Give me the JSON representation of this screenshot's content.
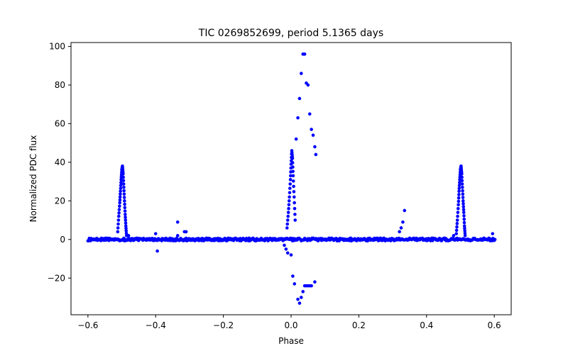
{
  "chart_data": {
    "type": "scatter",
    "title": "TIC 0269852699, period 5.1365 days",
    "xlabel": "Phase",
    "ylabel": "Normalized PDC flux",
    "xlim": [
      -0.65,
      0.65
    ],
    "ylim": [
      -39,
      102
    ],
    "xticks": [
      -0.6,
      -0.4,
      -0.2,
      0.0,
      0.2,
      0.4,
      0.6
    ],
    "xtick_labels": [
      "−0.6",
      "−0.4",
      "−0.2",
      "0.0",
      "0.2",
      "0.4",
      "0.6"
    ],
    "yticks": [
      -20,
      0,
      20,
      40,
      60,
      80,
      100
    ],
    "ytick_labels": [
      "−20",
      "0",
      "20",
      "40",
      "60",
      "80",
      "100"
    ],
    "grid": false,
    "marker_color": "#0000ff",
    "baseline": {
      "x_range": [
        -0.6,
        0.6
      ],
      "y_center": 0.0,
      "y_scatter": 0.7,
      "step": 0.004
    },
    "peaks": [
      {
        "name": "flare-left",
        "x": [
          -0.512,
          -0.509,
          -0.506,
          -0.504,
          -0.502,
          -0.5,
          -0.498,
          -0.496,
          -0.494,
          -0.492,
          -0.49,
          -0.488,
          -0.486
        ],
        "y": [
          4,
          12,
          19,
          25,
          31,
          36,
          38,
          34,
          27,
          20,
          13,
          7,
          2
        ]
      },
      {
        "name": "flare-right",
        "x": [
          0.488,
          0.491,
          0.494,
          0.496,
          0.498,
          0.5,
          0.502,
          0.504,
          0.506,
          0.508,
          0.51,
          0.512,
          0.514
        ],
        "y": [
          3,
          10,
          18,
          25,
          31,
          36,
          38,
          34,
          27,
          20,
          14,
          7,
          2
        ]
      },
      {
        "name": "flare-center",
        "x": [
          -0.012,
          -0.008,
          -0.005,
          -0.002,
          0.0,
          0.002,
          0.004,
          0.006,
          0.009,
          0.012
        ],
        "y": [
          6,
          14,
          22,
          31,
          39,
          46,
          42,
          33,
          22,
          10
        ]
      }
    ],
    "points": [
      {
        "x": 0.015,
        "y": 52
      },
      {
        "x": 0.02,
        "y": 63
      },
      {
        "x": 0.025,
        "y": 73
      },
      {
        "x": 0.03,
        "y": 86
      },
      {
        "x": 0.035,
        "y": 96
      },
      {
        "x": 0.04,
        "y": 96
      },
      {
        "x": 0.045,
        "y": 81
      },
      {
        "x": 0.05,
        "y": 80
      },
      {
        "x": 0.055,
        "y": 65
      },
      {
        "x": 0.06,
        "y": 57
      },
      {
        "x": 0.065,
        "y": 54
      },
      {
        "x": 0.07,
        "y": 48
      },
      {
        "x": 0.073,
        "y": 44
      },
      {
        "x": 0.0,
        "y": -8
      },
      {
        "x": 0.005,
        "y": -19
      },
      {
        "x": 0.01,
        "y": -23
      },
      {
        "x": 0.02,
        "y": -31
      },
      {
        "x": 0.025,
        "y": -33
      },
      {
        "x": 0.03,
        "y": -30
      },
      {
        "x": 0.035,
        "y": -27
      },
      {
        "x": 0.04,
        "y": -24
      },
      {
        "x": 0.045,
        "y": -24
      },
      {
        "x": 0.05,
        "y": -24
      },
      {
        "x": 0.055,
        "y": -24
      },
      {
        "x": 0.06,
        "y": -24
      },
      {
        "x": 0.07,
        "y": -22
      },
      {
        "x": -0.02,
        "y": -3
      },
      {
        "x": -0.015,
        "y": -5
      },
      {
        "x": -0.01,
        "y": -7
      },
      {
        "x": -0.4,
        "y": 3
      },
      {
        "x": -0.395,
        "y": -6
      },
      {
        "x": -0.335,
        "y": 9
      },
      {
        "x": -0.335,
        "y": 2
      },
      {
        "x": -0.315,
        "y": 4
      },
      {
        "x": -0.31,
        "y": 4
      },
      {
        "x": 0.32,
        "y": 4
      },
      {
        "x": 0.325,
        "y": 6
      },
      {
        "x": 0.33,
        "y": 9
      },
      {
        "x": 0.335,
        "y": 15
      },
      {
        "x": 0.595,
        "y": 3
      },
      {
        "x": -0.48,
        "y": 2
      },
      {
        "x": 0.48,
        "y": 2
      }
    ]
  }
}
